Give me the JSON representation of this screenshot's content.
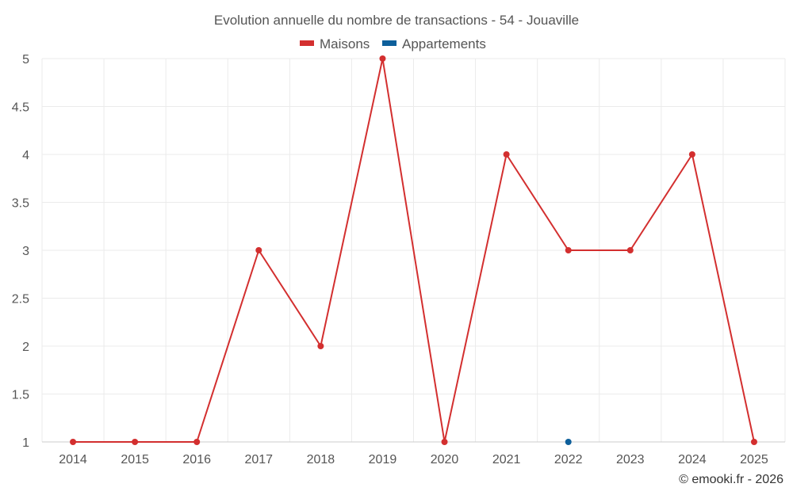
{
  "chart_data": {
    "type": "line",
    "title": "Evolution annuelle du nombre de transactions - 54 - Jouaville",
    "categories": [
      "2014",
      "2015",
      "2016",
      "2017",
      "2018",
      "2019",
      "2020",
      "2021",
      "2022",
      "2023",
      "2024",
      "2025"
    ],
    "series": [
      {
        "name": "Maisons",
        "color": "#d32f2f",
        "values": [
          1,
          1,
          1,
          3,
          2,
          5,
          1,
          4,
          3,
          3,
          4,
          1
        ]
      },
      {
        "name": "Appartements",
        "color": "#0d5f9b",
        "values": [
          null,
          null,
          null,
          null,
          null,
          null,
          null,
          null,
          1,
          null,
          null,
          null
        ]
      }
    ],
    "yticks": [
      "1",
      "1.5",
      "2",
      "2.5",
      "3",
      "3.5",
      "4",
      "4.5",
      "5"
    ],
    "ylim": [
      1,
      5
    ],
    "grid": true,
    "legend_position": "top-center",
    "credit": "© emooki.fr - 2026"
  }
}
